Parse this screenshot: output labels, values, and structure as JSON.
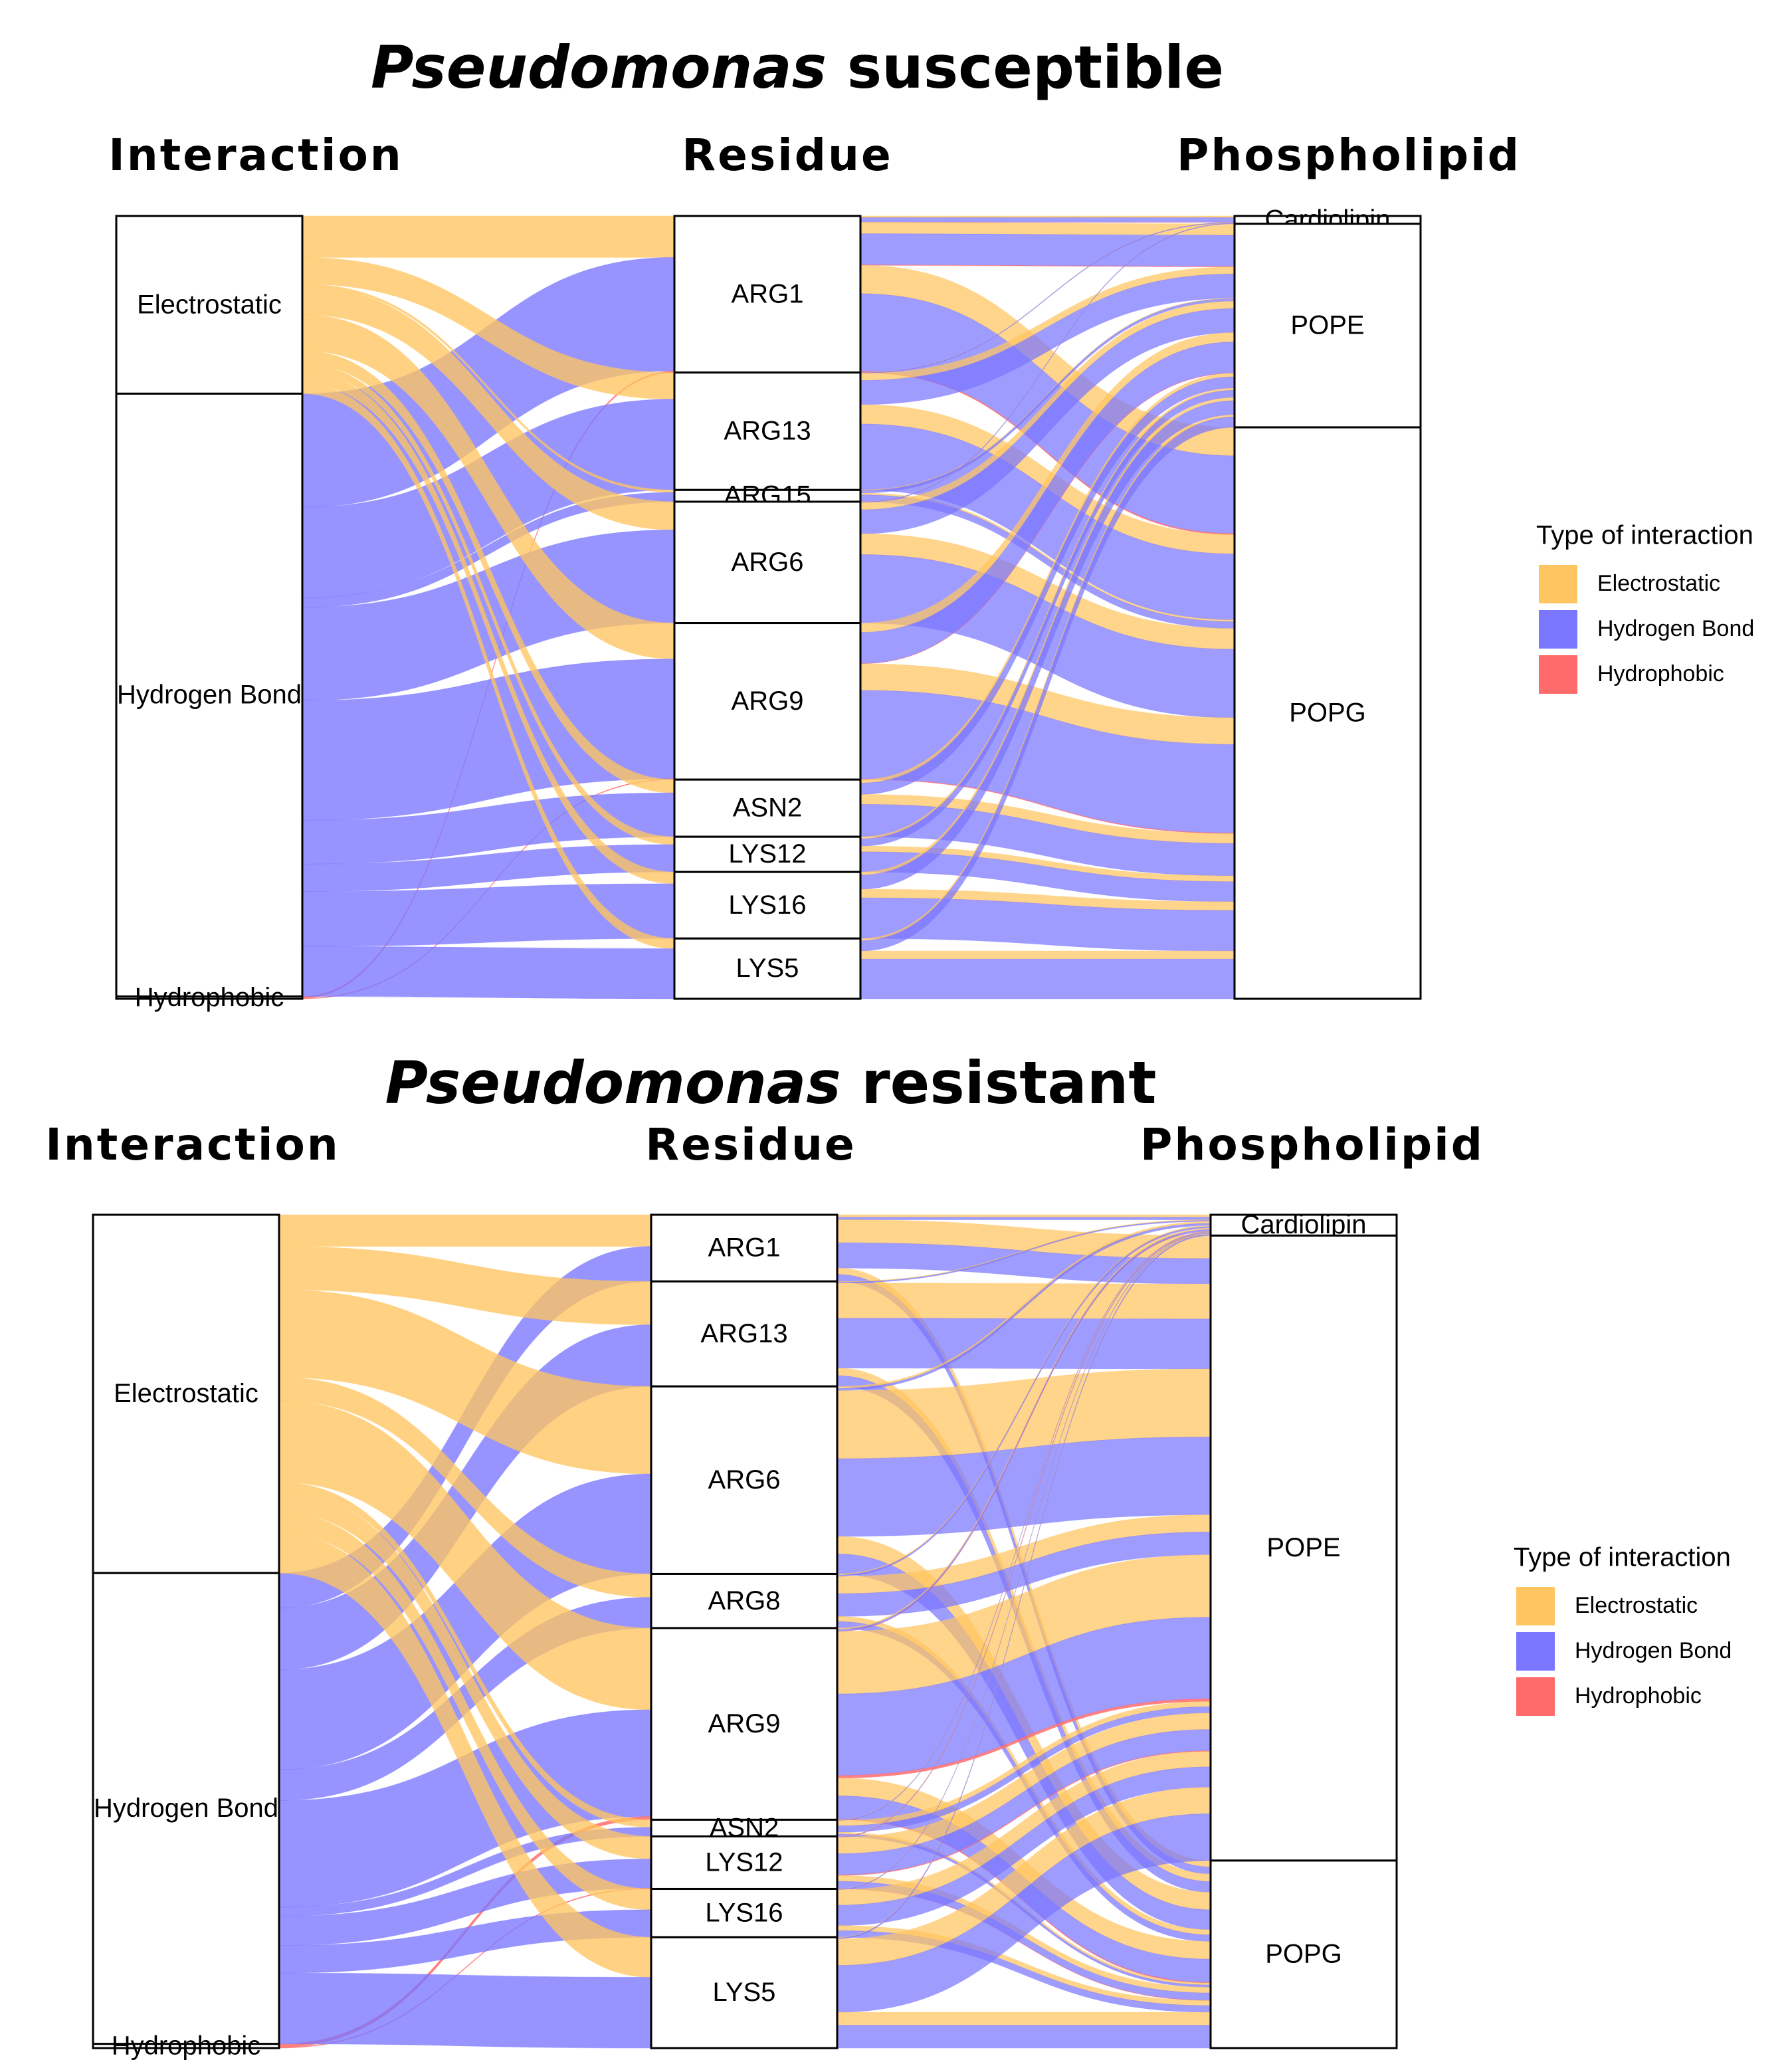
{
  "colors": {
    "Electrostatic": "#ffc560",
    "Hydrogen Bond": "#7a76ff",
    "Hydrophobic": "#ff6b6b"
  },
  "chart_data": [
    {
      "type": "alluvial",
      "title_italic": "Pseudomonas",
      "title_rest": " susceptible",
      "axis_labels": [
        "Interaction",
        "Residue",
        "Phospholipid"
      ],
      "legend_title": "Type of interaction",
      "legend_entries": [
        "Electrostatic",
        "Hydrogen Bond",
        "Hydrophobic"
      ],
      "interaction": [
        {
          "name": "Electrostatic",
          "value": 22.7
        },
        {
          "name": "Hydrogen Bond",
          "value": 77.0
        },
        {
          "name": "Hydrophobic",
          "value": 0.3
        }
      ],
      "residues": [
        {
          "name": "ARG1",
          "value": 20
        },
        {
          "name": "ARG13",
          "value": 15
        },
        {
          "name": "ARG15",
          "value": 1.5
        },
        {
          "name": "ARG6",
          "value": 15.5
        },
        {
          "name": "ARG9",
          "value": 20
        },
        {
          "name": "ASN2",
          "value": 7.3
        },
        {
          "name": "LYS12",
          "value": 4.5
        },
        {
          "name": "LYS16",
          "value": 8.5
        },
        {
          "name": "LYS5",
          "value": 7.7
        }
      ],
      "phospholipids": [
        {
          "name": "Cardiolipin",
          "value": 1
        },
        {
          "name": "POPE",
          "value": 26
        },
        {
          "name": "POPG",
          "value": 73
        }
      ],
      "flows": [
        {
          "residue": "ARG1",
          "E": 5.3,
          "H": 14.5,
          "P": 0.2,
          "lipid": {
            "Cardiolipin": 0.8,
            "POPE": 5.5,
            "POPG": 13.7
          }
        },
        {
          "residue": "ARG13",
          "E": 3.4,
          "H": 11.6,
          "P": 0,
          "lipid": {
            "Cardiolipin": 0.1,
            "POPE": 4.0,
            "POPG": 10.9
          }
        },
        {
          "residue": "ARG15",
          "E": 0.3,
          "H": 1.2,
          "P": 0,
          "lipid": {
            "Cardiolipin": 0,
            "POPE": 0.4,
            "POPG": 1.1
          }
        },
        {
          "residue": "ARG6",
          "E": 3.6,
          "H": 11.9,
          "P": 0,
          "lipid": {
            "Cardiolipin": 0.1,
            "POPE": 4.0,
            "POPG": 11.4
          }
        },
        {
          "residue": "ARG9",
          "E": 4.6,
          "H": 15.3,
          "P": 0.1,
          "lipid": {
            "Cardiolipin": 0,
            "POPE": 5.2,
            "POPG": 14.8
          }
        },
        {
          "residue": "ASN2",
          "E": 1.7,
          "H": 5.6,
          "P": 0,
          "lipid": {
            "Cardiolipin": 0,
            "POPE": 1.9,
            "POPG": 5.4
          }
        },
        {
          "residue": "LYS12",
          "E": 1.0,
          "H": 3.5,
          "P": 0,
          "lipid": {
            "Cardiolipin": 0,
            "POPE": 1.2,
            "POPG": 3.3
          }
        },
        {
          "residue": "LYS16",
          "E": 1.5,
          "H": 7.0,
          "P": 0,
          "lipid": {
            "Cardiolipin": 0,
            "POPE": 2.2,
            "POPG": 6.3
          }
        },
        {
          "residue": "LYS5",
          "E": 1.3,
          "H": 6.4,
          "P": 0,
          "lipid": {
            "Cardiolipin": 0,
            "POPE": 1.6,
            "POPG": 6.1
          }
        }
      ]
    },
    {
      "type": "alluvial",
      "title_italic": "Pseudomonas",
      "title_rest": " resistant",
      "axis_labels": [
        "Interaction",
        "Residue",
        "Phospholipid"
      ],
      "legend_title": "Type of interaction",
      "legend_entries": [
        "Electrostatic",
        "Hydrogen Bond",
        "Hydrophobic"
      ],
      "interaction": [
        {
          "name": "Electrostatic",
          "value": 43
        },
        {
          "name": "Hydrogen Bond",
          "value": 56.5
        },
        {
          "name": "Hydrophobic",
          "value": 0.5
        }
      ],
      "residues": [
        {
          "name": "ARG1",
          "value": 8
        },
        {
          "name": "ARG13",
          "value": 12.6
        },
        {
          "name": "ARG6",
          "value": 22.5
        },
        {
          "name": "ARG8",
          "value": 6.5
        },
        {
          "name": "ARG9",
          "value": 23
        },
        {
          "name": "ASN2",
          "value": 2
        },
        {
          "name": "LYS12",
          "value": 6.3
        },
        {
          "name": "LYS16",
          "value": 5.8
        },
        {
          "name": "LYS5",
          "value": 13.3
        }
      ],
      "phospholipids": [
        {
          "name": "Cardiolipin",
          "value": 2.5
        },
        {
          "name": "POPE",
          "value": 75
        },
        {
          "name": "POPG",
          "value": 22.5
        }
      ],
      "flows": [
        {
          "residue": "ARG1",
          "E": 3.8,
          "H": 4.2,
          "P": 0,
          "lipid": {
            "Cardiolipin": 0.6,
            "POPE": 5.8,
            "POPG": 1.6
          }
        },
        {
          "residue": "ARG13",
          "E": 5.2,
          "H": 7.4,
          "P": 0,
          "lipid": {
            "Cardiolipin": 0.2,
            "POPE": 10.2,
            "POPG": 2.2
          }
        },
        {
          "residue": "ARG6",
          "E": 10.5,
          "H": 12.0,
          "P": 0,
          "lipid": {
            "Cardiolipin": 0.5,
            "POPE": 17.5,
            "POPG": 4.5
          }
        },
        {
          "residue": "ARG8",
          "E": 2.8,
          "H": 3.7,
          "P": 0,
          "lipid": {
            "Cardiolipin": 0.3,
            "POPE": 4.8,
            "POPG": 1.4
          }
        },
        {
          "residue": "ARG9",
          "E": 9.8,
          "H": 12.8,
          "P": 0.4,
          "lipid": {
            "Cardiolipin": 0.4,
            "POPE": 17.6,
            "POPG": 5.0
          }
        },
        {
          "residue": "ASN2",
          "E": 0.9,
          "H": 1.1,
          "P": 0,
          "lipid": {
            "Cardiolipin": 0.1,
            "POPE": 1.4,
            "POPG": 0.5
          }
        },
        {
          "residue": "LYS12",
          "E": 2.7,
          "H": 3.5,
          "P": 0.1,
          "lipid": {
            "Cardiolipin": 0.1,
            "POPE": 4.6,
            "POPG": 1.6
          }
        },
        {
          "residue": "LYS16",
          "E": 2.5,
          "H": 3.3,
          "P": 0,
          "lipid": {
            "Cardiolipin": 0.1,
            "POPE": 4.3,
            "POPG": 1.4
          }
        },
        {
          "residue": "LYS5",
          "E": 4.8,
          "H": 8.5,
          "P": 0,
          "lipid": {
            "Cardiolipin": 0.2,
            "POPE": 8.8,
            "POPG": 4.3
          }
        }
      ]
    }
  ]
}
